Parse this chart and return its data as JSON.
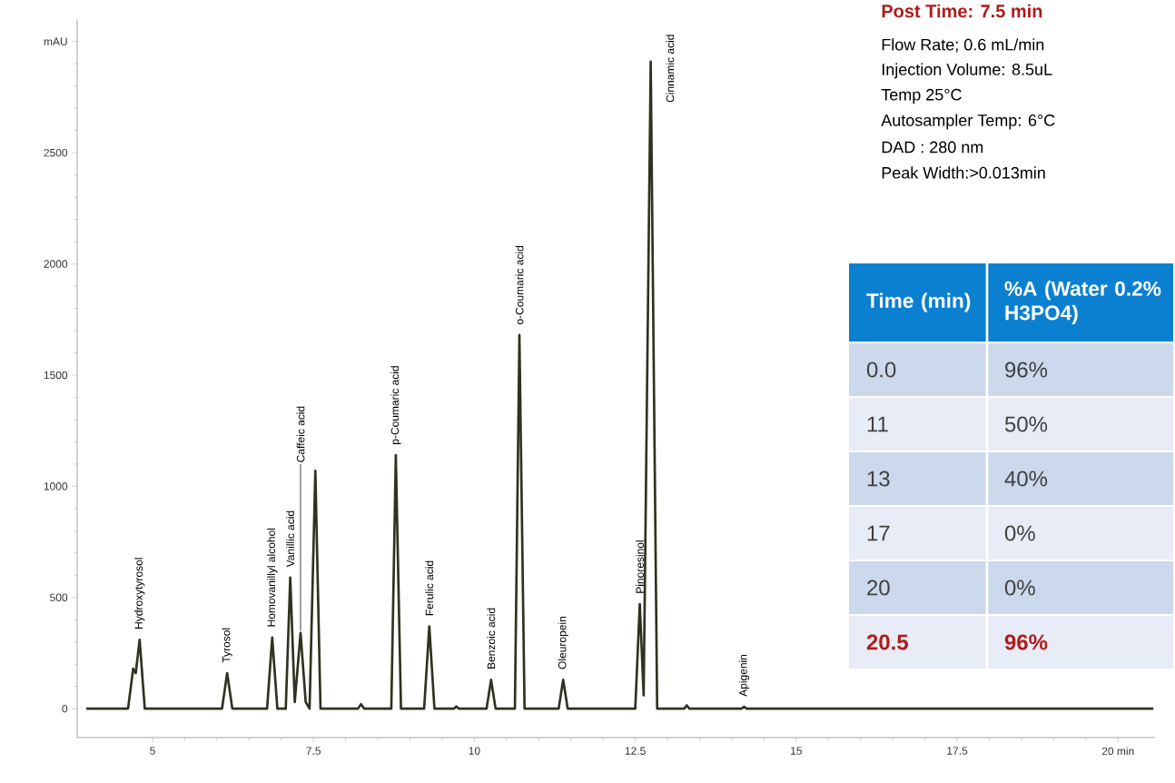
{
  "chart_data": [
    {
      "type": "line",
      "color": "#2e3320",
      "x": [
        3.97,
        4.62,
        4.7,
        4.74,
        4.8,
        4.88,
        6.08,
        6.16,
        6.24,
        6.78,
        6.86,
        6.94,
        7.07,
        7.14,
        7.21,
        7.3,
        7.38,
        7.44,
        7.53,
        7.61,
        8.19,
        8.24,
        8.29,
        8.71,
        8.78,
        8.86,
        9.22,
        9.3,
        9.38,
        9.68,
        9.72,
        9.76,
        10.19,
        10.26,
        10.33,
        10.63,
        10.7,
        10.78,
        11.31,
        11.38,
        11.45,
        12.5,
        12.57,
        12.63,
        12.74,
        12.84,
        13.26,
        13.3,
        13.34,
        14.15,
        14.19,
        14.23,
        20.55
      ],
      "values": [
        0,
        0,
        180,
        160,
        310,
        0,
        0,
        160,
        0,
        0,
        320,
        0,
        0,
        590,
        30,
        340,
        30,
        0,
        1070,
        0,
        0,
        20,
        0,
        0,
        1140,
        0,
        0,
        370,
        0,
        0,
        10,
        0,
        0,
        130,
        0,
        0,
        1680,
        0,
        0,
        130,
        0,
        0,
        470,
        60,
        2910,
        0,
        0,
        15,
        0,
        0,
        8,
        0,
        0
      ],
      "xlim": [
        3.83,
        20.57
      ],
      "ylim": [
        -130,
        3100
      ],
      "xticks": [
        5,
        7.5,
        10,
        12.5,
        15,
        17.5,
        {
          "value": 20,
          "label": "20 min"
        }
      ],
      "yticks": [
        0,
        500,
        1000,
        1500,
        2000,
        2500,
        {
          "value": 3000,
          "label": "mAU"
        }
      ],
      "annotations": [
        {
          "text": "Hydroxytyrosol",
          "x": 4.8,
          "y": 310
        },
        {
          "text": "Tyrosol",
          "x": 6.16,
          "y": 160
        },
        {
          "text": "Homovanillyl alcohol",
          "x": 6.86,
          "y": 320
        },
        {
          "text": "Vanillic acid",
          "x": 7.14,
          "y": 590
        },
        {
          "text": "Caffeic acid",
          "x": 7.3,
          "y": 340
        },
        {
          "text": "p-Coumaric acid",
          "x": 8.78,
          "y": 1140
        },
        {
          "text": "Ferulic acid",
          "x": 9.3,
          "y": 370
        },
        {
          "text": "Benzoic acid",
          "x": 10.26,
          "y": 130
        },
        {
          "text": "o-Coumaric acid",
          "x": 10.7,
          "y": 1680
        },
        {
          "text": "Oleuropein",
          "x": 11.38,
          "y": 130
        },
        {
          "text": "Pinoresinol",
          "x": 12.57,
          "y": 470
        },
        {
          "text": "Cinnamic acid",
          "x": 12.74,
          "y": 2910
        },
        {
          "text": "Apigenin",
          "x": 14.19,
          "y": 8
        }
      ]
    },
    {
      "type": "other",
      "title": "Post Time: 7.5 min",
      "annotations": [
        "Flow Rate; 0.6 mL/min",
        "Injection Volume: 8.5uL",
        "Temp 25°C",
        "Autosampler Temp: 6°C",
        "DAD : 280 nm",
        "Peak Width:>0.013min"
      ],
      "categories": [
        "Time (min)",
        "%A (Water 0.2% H3PO4)"
      ],
      "y_categories": [
        "0.0",
        "11",
        "13",
        "17",
        "20",
        "**20.5**"
      ],
      "value_labels": [
        "96%",
        "50%",
        "40%",
        "0%",
        "0%",
        "**96%**"
      ],
      "colors": [
        "#404040",
        "#404040",
        "#404040",
        "#404040",
        "#404040",
        "#b01c1c"
      ]
    }
  ]
}
